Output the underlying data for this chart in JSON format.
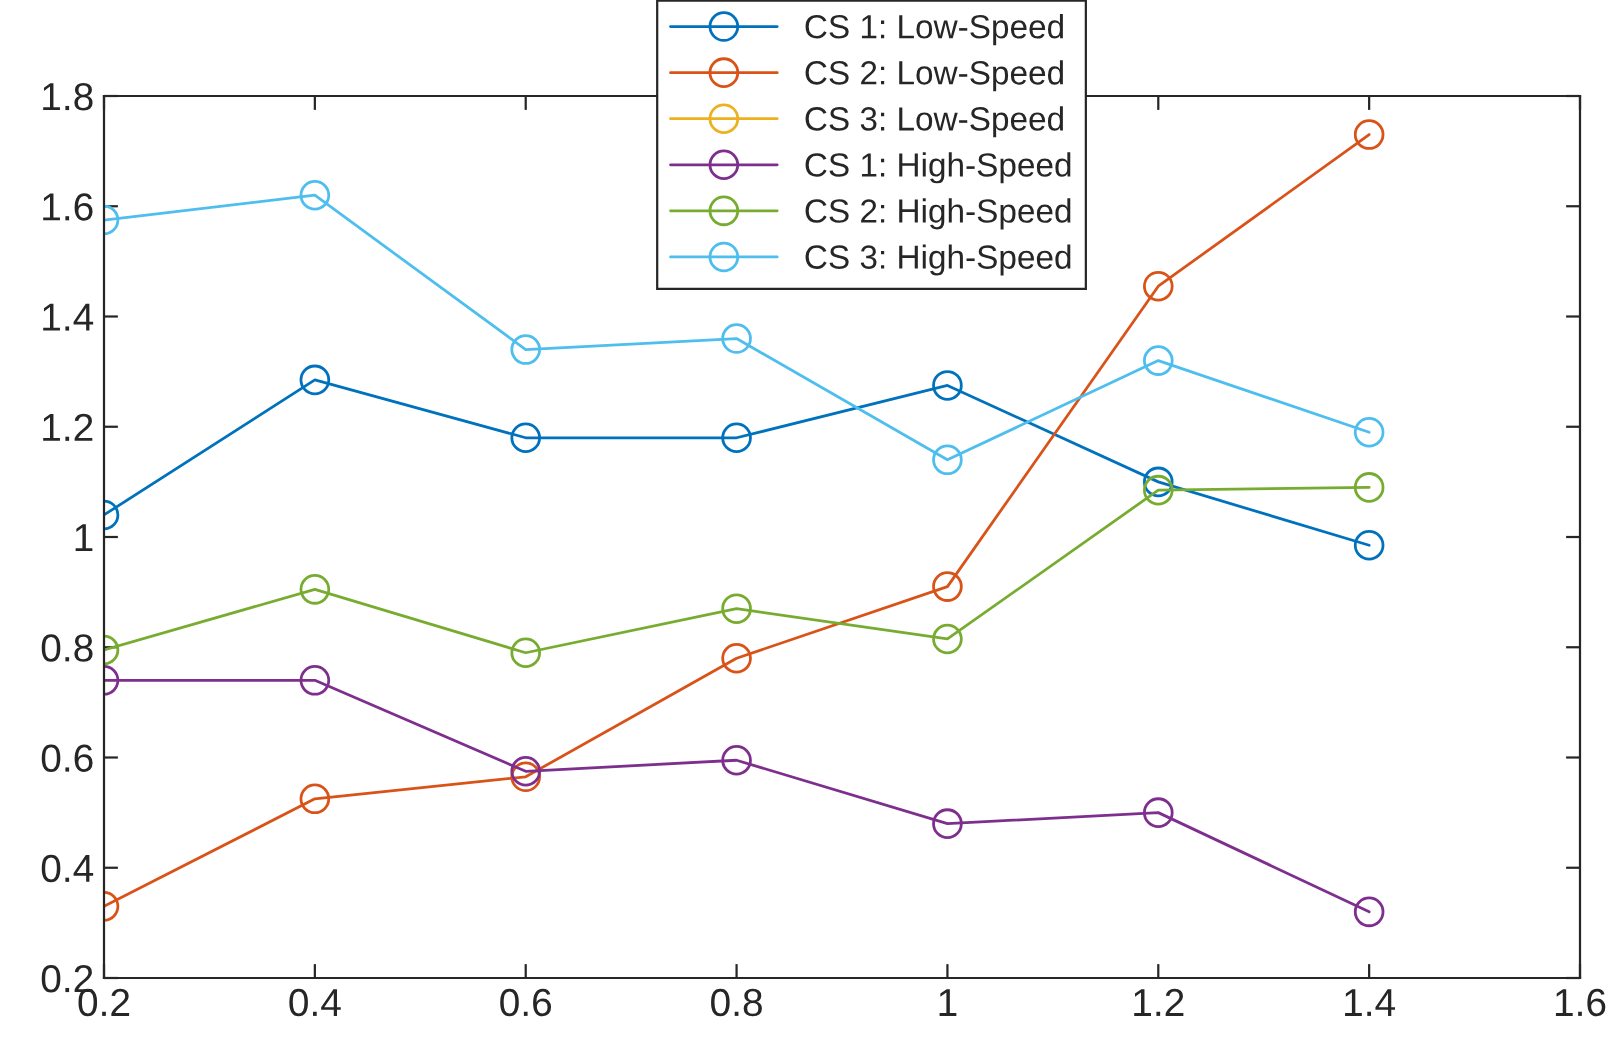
{
  "chart_data": {
    "type": "line",
    "x": [
      0.2,
      0.4,
      0.6,
      0.8,
      1.0,
      1.2,
      1.4
    ],
    "series": [
      {
        "name": "CS 1: Low-Speed",
        "color": "#0072bd",
        "values": [
          1.04,
          1.285,
          1.18,
          1.18,
          1.275,
          1.1,
          0.985
        ]
      },
      {
        "name": "CS 2: Low-Speed",
        "color": "#d95319",
        "values": [
          0.33,
          0.525,
          0.565,
          0.78,
          0.91,
          1.455,
          1.73
        ]
      },
      {
        "name": "CS 3: Low-Speed",
        "color": "#edb120",
        "values": [
          null,
          null,
          null,
          null,
          null,
          null,
          null
        ]
      },
      {
        "name": "CS 1: High-Speed",
        "color": "#7e2f8e",
        "values": [
          0.74,
          0.74,
          0.575,
          0.595,
          0.48,
          0.5,
          0.32
        ]
      },
      {
        "name": "CS 2: High-Speed",
        "color": "#77ac30",
        "values": [
          0.795,
          0.905,
          0.79,
          0.87,
          0.815,
          1.085,
          1.09
        ]
      },
      {
        "name": "CS 3: High-Speed",
        "color": "#4dbeee",
        "values": [
          1.575,
          1.62,
          1.34,
          1.36,
          1.14,
          1.32,
          1.19
        ]
      }
    ],
    "xlim": [
      0.2,
      1.6
    ],
    "xticks": [
      0.2,
      0.4,
      0.6,
      0.8,
      1,
      1.2,
      1.4,
      1.6
    ],
    "ylim": [
      0.2,
      1.8
    ],
    "yticks": [
      0.2,
      0.4,
      0.6,
      0.8,
      1,
      1.2,
      1.4,
      1.6,
      1.8
    ],
    "grid": false,
    "legend": "top",
    "marker": "circle",
    "line_style": "solid"
  }
}
